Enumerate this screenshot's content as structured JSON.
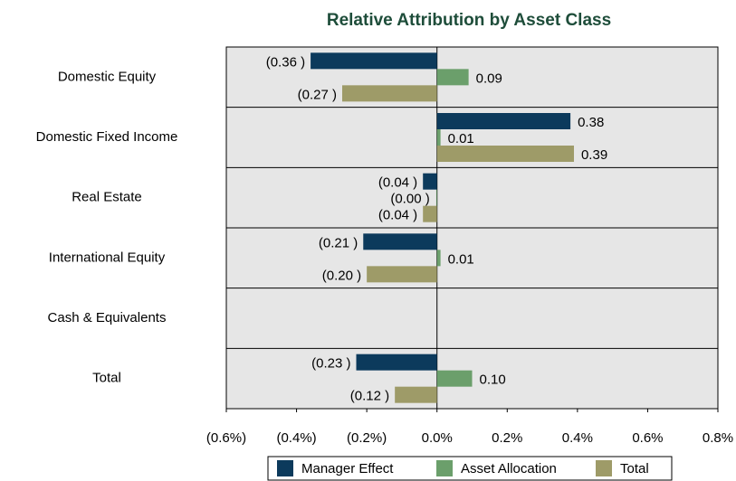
{
  "chart_data": {
    "type": "hbar",
    "title": "Relative Attribution by Asset Class",
    "categories": [
      "Domestic Equity",
      "Domestic Fixed Income",
      "Real Estate",
      "International Equity",
      "Cash & Equivalents",
      "Total"
    ],
    "series": [
      {
        "name": "Manager Effect",
        "color": "#0c3a5c",
        "values": [
          -0.36,
          0.38,
          -0.04,
          -0.21,
          null,
          -0.23
        ],
        "value_labels": [
          "(0.36 )",
          "0.38",
          "(0.04 )",
          "(0.21 )",
          null,
          "(0.23 )"
        ]
      },
      {
        "name": "Asset Allocation",
        "color": "#6b9f6b",
        "values": [
          0.09,
          0.01,
          -0.002,
          0.01,
          null,
          0.1
        ],
        "value_labels": [
          "0.09",
          "0.01",
          "(0.00 )",
          "0.01",
          null,
          "0.10"
        ]
      },
      {
        "name": "Total",
        "color": "#9e9b68",
        "values": [
          -0.27,
          0.39,
          -0.04,
          -0.2,
          null,
          -0.12
        ],
        "value_labels": [
          "(0.27 )",
          "0.39",
          "(0.04 )",
          "(0.20 )",
          null,
          "(0.12 )"
        ]
      }
    ],
    "xlim": [
      -0.6,
      0.8
    ],
    "xticks": [
      {
        "value": -0.6,
        "label": "(0.6%)"
      },
      {
        "value": -0.4,
        "label": "(0.4%)"
      },
      {
        "value": -0.2,
        "label": "(0.2%)"
      },
      {
        "value": 0,
        "label": "0.0%"
      },
      {
        "value": 0.2,
        "label": "0.2%"
      },
      {
        "value": 0.4,
        "label": "0.4%"
      },
      {
        "value": 0.6,
        "label": "0.6%"
      },
      {
        "value": 0.8,
        "label": "0.8%"
      }
    ],
    "negative_label_color": "#ff0000",
    "legend": "bottom"
  }
}
